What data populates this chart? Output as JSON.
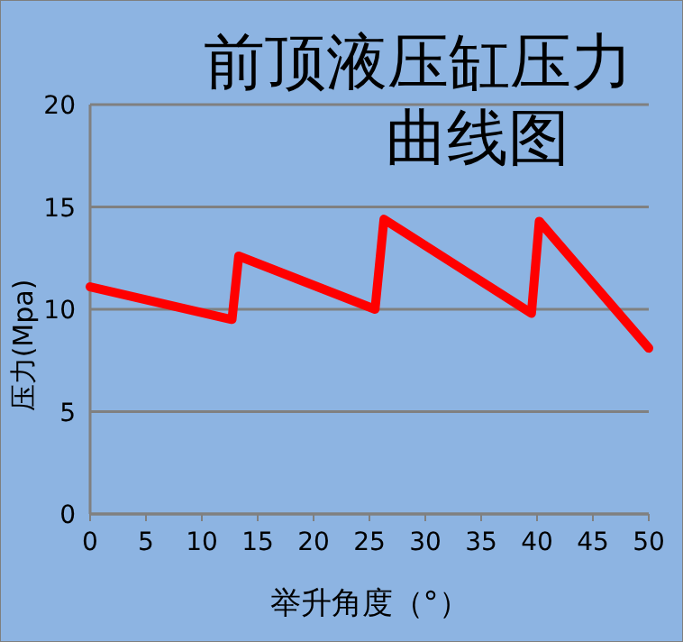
{
  "chart_data": {
    "type": "line",
    "title": "前顶液压缸压力曲线图",
    "xlabel": "举升角度（°）",
    "ylabel": "压力(Mpa)",
    "series": [
      {
        "color": "#ff0000",
        "x": [
          0,
          12.7,
          13.3,
          25.5,
          26.3,
          39.5,
          40.2,
          50
        ],
        "values": [
          11.1,
          9.5,
          12.6,
          10.0,
          14.4,
          9.8,
          14.3,
          8.1
        ]
      }
    ],
    "xlim": [
      0,
      50
    ],
    "xticks": [
      0,
      5,
      10,
      15,
      20,
      25,
      30,
      35,
      40,
      45,
      50
    ],
    "ylim": [
      0,
      20
    ],
    "yticks": [
      0,
      5,
      10,
      15,
      20
    ],
    "grid": "y",
    "marker": "none",
    "line_style": "solid"
  }
}
